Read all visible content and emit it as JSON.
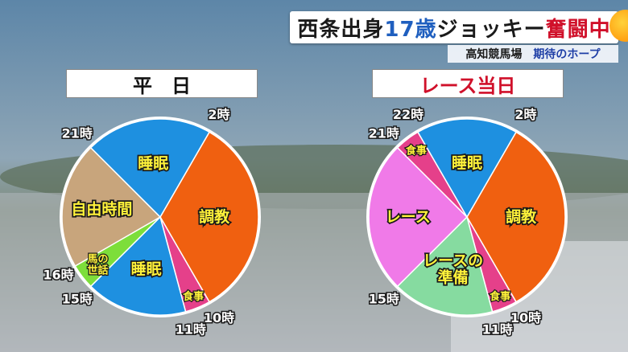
{
  "caption": {
    "part1": "西条出身",
    "part2": "17歳",
    "part3": "ジョッキー",
    "part4": "奮闘中",
    "colors": {
      "part1": "#1a1a1a",
      "part2": "#1f5fbf",
      "part3": "#1a1a1a",
      "part4": "#d0102a"
    }
  },
  "subcaption": {
    "venue": "高知競馬場",
    "hope": "期待のホープ"
  },
  "labels": {
    "weekday": "平　日",
    "raceday": "レース当日"
  },
  "chart_data": [
    {
      "type": "pie",
      "title": "平　日",
      "unit": "hours",
      "start_hour": 2,
      "clockwise": true,
      "slices": [
        {
          "label": "調教",
          "start": 2,
          "end": 10,
          "color": "#f06010"
        },
        {
          "label": "食事",
          "start": 10,
          "end": 11,
          "color": "#e5408a"
        },
        {
          "label": "睡眠",
          "start": 11,
          "end": 15,
          "color": "#1e90e0"
        },
        {
          "label": "馬の\n世話",
          "start": 15,
          "end": 16,
          "color": "#7dde3a"
        },
        {
          "label": "自由時間",
          "start": 16,
          "end": 21,
          "color": "#c8a57c"
        },
        {
          "label": "睡眠",
          "start": 21,
          "end": 26,
          "color": "#1e90e0"
        }
      ],
      "hour_labels": [
        "2時",
        "10時",
        "11時",
        "15時",
        "16時",
        "21時"
      ]
    },
    {
      "type": "pie",
      "title": "レース当日",
      "unit": "hours",
      "start_hour": 2,
      "clockwise": true,
      "slices": [
        {
          "label": "調教",
          "start": 2,
          "end": 10,
          "color": "#f06010"
        },
        {
          "label": "食事",
          "start": 10,
          "end": 11,
          "color": "#e5408a"
        },
        {
          "label": "レースの\n準備",
          "start": 11,
          "end": 15,
          "color": "#86dba0"
        },
        {
          "label": "レース",
          "start": 15,
          "end": 21,
          "color": "#f07ae8"
        },
        {
          "label": "食事",
          "start": 21,
          "end": 22,
          "color": "#e5408a"
        },
        {
          "label": "睡眠",
          "start": 22,
          "end": 26,
          "color": "#1e90e0"
        }
      ],
      "hour_labels": [
        "2時",
        "10時",
        "11時",
        "15時",
        "21時",
        "22時"
      ]
    }
  ]
}
